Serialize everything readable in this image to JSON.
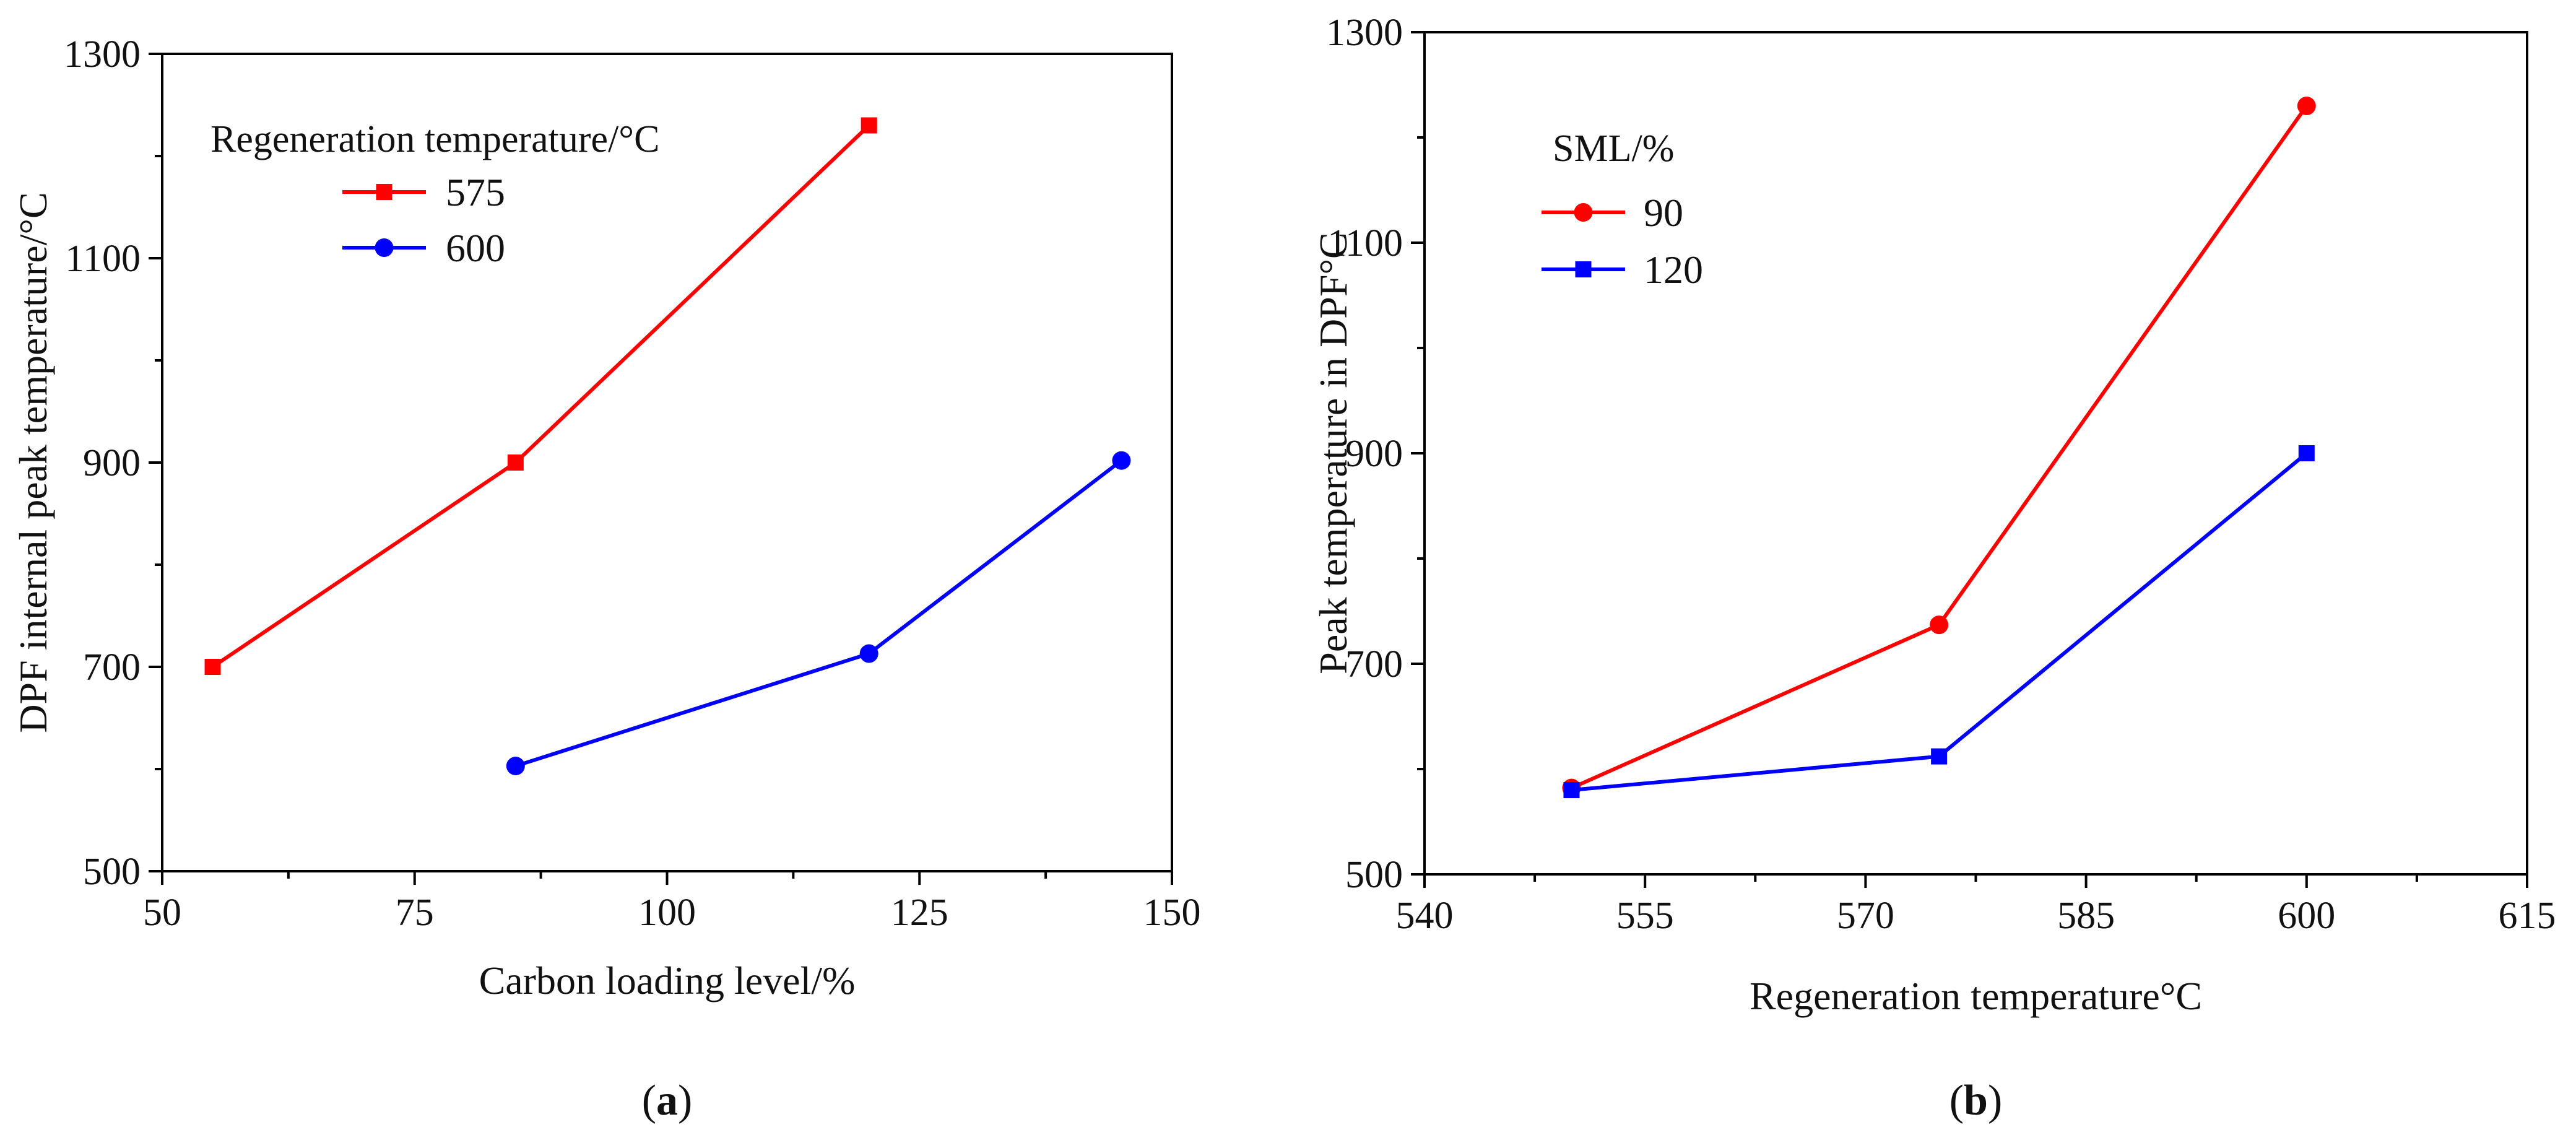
{
  "chart_data": [
    {
      "type": "line",
      "panel_label": "a",
      "xlabel": "Carbon loading level/%",
      "ylabel": "DPF internal peak temperature/°C",
      "xlim": [
        50,
        150
      ],
      "ylim": [
        500,
        1300
      ],
      "xticks": [
        50,
        75,
        100,
        125,
        150
      ],
      "yticks": [
        500,
        700,
        900,
        1100,
        1300
      ],
      "grid": false,
      "legend": {
        "title": "Regeneration temperature/°C",
        "position": "top-left"
      },
      "series": [
        {
          "name": "575",
          "color": "#ff0000",
          "marker": "square",
          "x": [
            55,
            85,
            120
          ],
          "values": [
            700,
            900,
            1230
          ]
        },
        {
          "name": "600",
          "color": "#0000ff",
          "marker": "circle",
          "x": [
            85,
            120,
            145
          ],
          "values": [
            603,
            713,
            902
          ]
        }
      ]
    },
    {
      "type": "line",
      "panel_label": "b",
      "xlabel": "Regeneration temperature°C",
      "ylabel": "Peak temperature in DPF°C",
      "xlim": [
        540,
        615
      ],
      "ylim": [
        500,
        1300
      ],
      "xticks": [
        540,
        555,
        570,
        585,
        600,
        615
      ],
      "yticks": [
        500,
        700,
        900,
        1100,
        1300
      ],
      "grid": false,
      "legend": {
        "title": "SML/%",
        "position": "top-left"
      },
      "series": [
        {
          "name": "90",
          "color": "#ff0000",
          "marker": "circle",
          "x": [
            550,
            575,
            600
          ],
          "values": [
            582,
            737,
            1230
          ]
        },
        {
          "name": "120",
          "color": "#0000ff",
          "marker": "square",
          "x": [
            550,
            575,
            600
          ],
          "values": [
            580,
            612,
            900
          ]
        }
      ]
    }
  ]
}
